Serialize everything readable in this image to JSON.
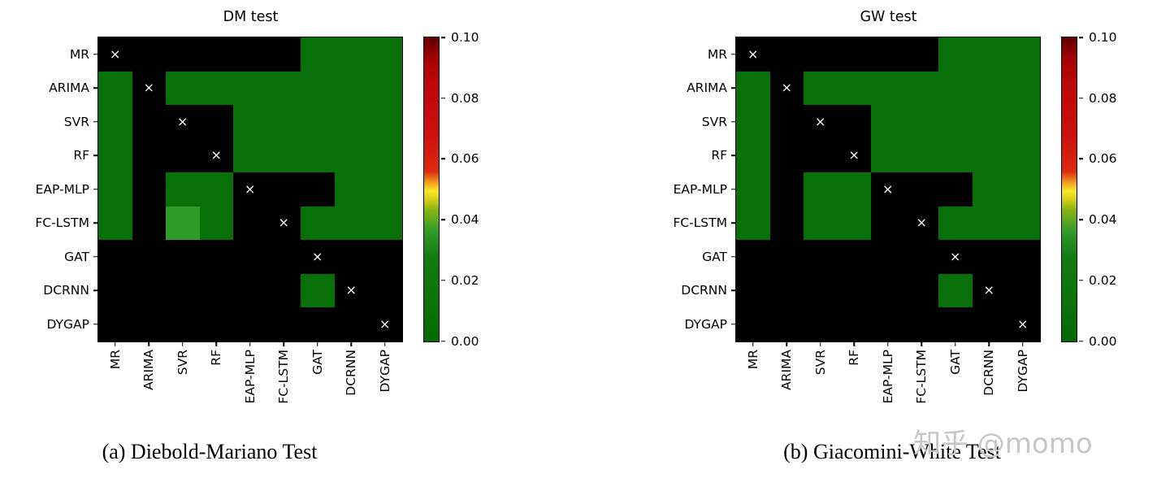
{
  "watermark": "知乎 @momo",
  "chart_data": [
    {
      "type": "heatmap",
      "title": "DM test",
      "caption": "(a) Diebold-Mariano Test",
      "categories": [
        "MR",
        "ARIMA",
        "SVR",
        "RF",
        "EAP-MLP",
        "FC-LSTM",
        "GAT",
        "DCRNN",
        "DYGAP"
      ],
      "matrix": [
        [
          null,
          null,
          null,
          null,
          null,
          null,
          0.005,
          0.005,
          0.005
        ],
        [
          0.005,
          null,
          0.005,
          0.005,
          0.005,
          0.005,
          0.005,
          0.005,
          0.005
        ],
        [
          0.005,
          null,
          null,
          null,
          0.005,
          0.005,
          0.005,
          0.005,
          0.005
        ],
        [
          0.005,
          null,
          null,
          null,
          0.005,
          0.005,
          0.005,
          0.005,
          0.005
        ],
        [
          0.005,
          null,
          0.005,
          0.005,
          null,
          null,
          null,
          0.005,
          0.005
        ],
        [
          0.005,
          null,
          0.03,
          0.005,
          null,
          null,
          0.005,
          0.005,
          0.005
        ],
        [
          null,
          null,
          null,
          null,
          null,
          null,
          null,
          null,
          null
        ],
        [
          null,
          null,
          null,
          null,
          null,
          null,
          0.005,
          null,
          null
        ],
        [
          null,
          null,
          null,
          null,
          null,
          null,
          null,
          null,
          null
        ]
      ],
      "diagonal_marker": "×",
      "masked_color": "#000000",
      "colorbar": {
        "min": 0.0,
        "max": 0.1,
        "ticks": [
          "0.10",
          "0.08",
          "0.06",
          "0.04",
          "0.02",
          "0.00"
        ]
      },
      "colormap_stops": [
        [
          0.0,
          "#056a05"
        ],
        [
          0.015,
          "#0e7c0e"
        ],
        [
          0.03,
          "#2f9b28"
        ],
        [
          0.042,
          "#85b312"
        ],
        [
          0.048,
          "#e3d51f"
        ],
        [
          0.051,
          "#f2c61e"
        ],
        [
          0.058,
          "#da2a10"
        ],
        [
          0.07,
          "#cc1010"
        ],
        [
          0.09,
          "#b40606"
        ],
        [
          0.1,
          "#600000"
        ]
      ]
    },
    {
      "type": "heatmap",
      "title": "GW test",
      "caption": "(b) Giacomini-White Test",
      "categories": [
        "MR",
        "ARIMA",
        "SVR",
        "RF",
        "EAP-MLP",
        "FC-LSTM",
        "GAT",
        "DCRNN",
        "DYGAP"
      ],
      "matrix": [
        [
          null,
          null,
          null,
          null,
          null,
          null,
          0.005,
          0.005,
          0.005
        ],
        [
          0.005,
          null,
          0.005,
          0.005,
          0.005,
          0.005,
          0.005,
          0.005,
          0.005
        ],
        [
          0.005,
          null,
          null,
          null,
          0.005,
          0.005,
          0.005,
          0.005,
          0.005
        ],
        [
          0.005,
          null,
          null,
          null,
          0.005,
          0.005,
          0.005,
          0.005,
          0.005
        ],
        [
          0.005,
          null,
          0.005,
          0.005,
          null,
          null,
          null,
          0.005,
          0.005
        ],
        [
          0.005,
          null,
          0.005,
          0.005,
          null,
          null,
          0.005,
          0.005,
          0.005
        ],
        [
          null,
          null,
          null,
          null,
          null,
          null,
          null,
          null,
          null
        ],
        [
          null,
          null,
          null,
          null,
          null,
          null,
          0.005,
          null,
          null
        ],
        [
          null,
          null,
          null,
          null,
          null,
          null,
          null,
          null,
          null
        ]
      ],
      "diagonal_marker": "×",
      "masked_color": "#000000",
      "colorbar": {
        "min": 0.0,
        "max": 0.1,
        "ticks": [
          "0.10",
          "0.08",
          "0.06",
          "0.04",
          "0.02",
          "0.00"
        ]
      },
      "colormap_stops": [
        [
          0.0,
          "#056a05"
        ],
        [
          0.015,
          "#0e7c0e"
        ],
        [
          0.03,
          "#2f9b28"
        ],
        [
          0.042,
          "#85b312"
        ],
        [
          0.048,
          "#e3d51f"
        ],
        [
          0.051,
          "#f2c61e"
        ],
        [
          0.058,
          "#da2a10"
        ],
        [
          0.07,
          "#cc1010"
        ],
        [
          0.09,
          "#b40606"
        ],
        [
          0.1,
          "#600000"
        ]
      ]
    }
  ]
}
